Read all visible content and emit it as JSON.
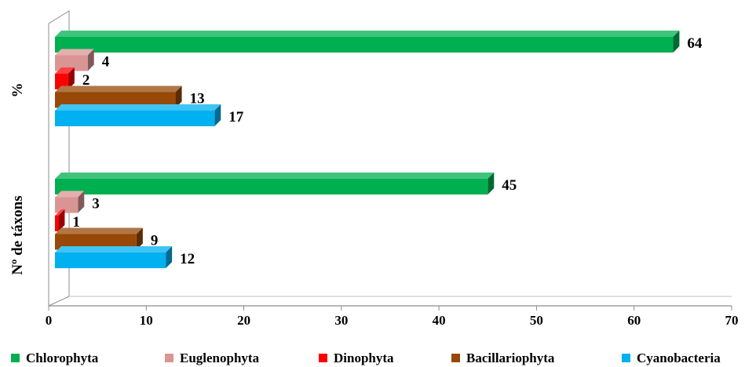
{
  "chart_data": {
    "type": "bar",
    "orientation": "horizontal",
    "style": "3d",
    "categories": [
      "Nº de táxons",
      "%"
    ],
    "series": [
      {
        "name": "Chlorophyta",
        "color": "#00b050",
        "values": [
          45,
          64
        ]
      },
      {
        "name": "Euglenophyta",
        "color": "#d99594",
        "values": [
          3,
          4
        ]
      },
      {
        "name": "Dinophyta",
        "color": "#ff0000",
        "values": [
          1,
          2
        ]
      },
      {
        "name": "Bacillariophyta",
        "color": "#984807",
        "values": [
          9,
          13
        ]
      },
      {
        "name": "Cyanobacteria",
        "color": "#00b0f0",
        "values": [
          12,
          17
        ]
      }
    ],
    "xlim": [
      0,
      70
    ],
    "xticks": [
      0,
      10,
      20,
      30,
      40,
      50,
      60,
      70
    ],
    "grid": false,
    "legend_position": "bottom"
  }
}
